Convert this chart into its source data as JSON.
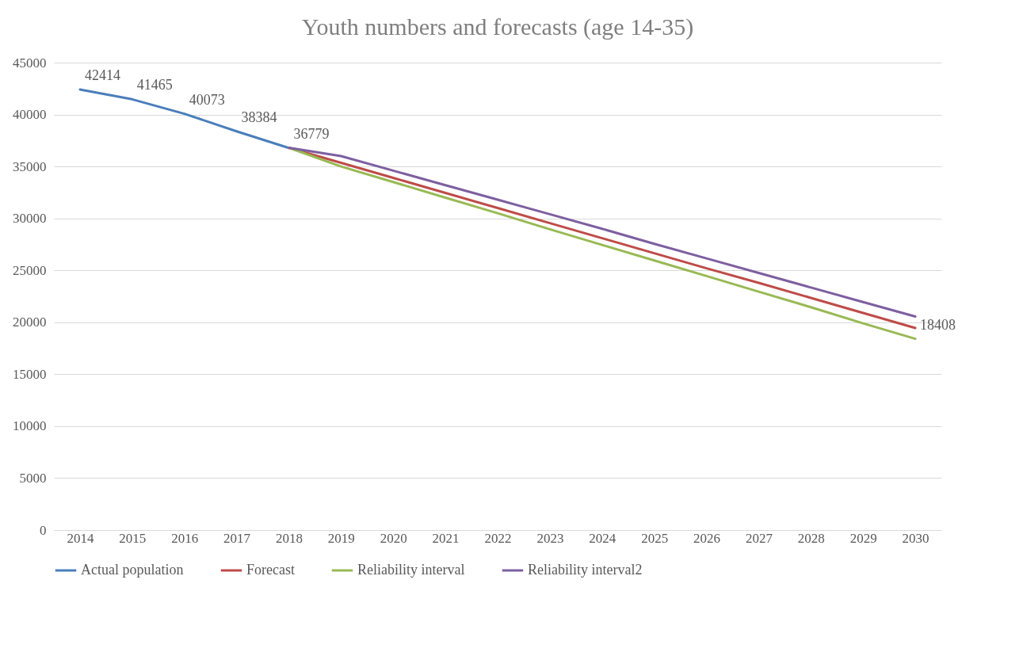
{
  "chart_data": {
    "type": "line",
    "title": "Youth numbers and forecasts (age 14-35)",
    "categories": [
      "2014",
      "2015",
      "2016",
      "2017",
      "2018",
      "2019",
      "2020",
      "2021",
      "2022",
      "2023",
      "2024",
      "2025",
      "2026",
      "2027",
      "2028",
      "2029",
      "2030"
    ],
    "series": [
      {
        "name": "Actual population",
        "color": "#4a7ebb",
        "values": [
          42414,
          41465,
          40073,
          38384,
          36779,
          null,
          null,
          null,
          null,
          null,
          null,
          null,
          null,
          null,
          null,
          null,
          null
        ],
        "value_labels": [
          "42414",
          "41465",
          "40073",
          "38384",
          "36779",
          null,
          null,
          null,
          null,
          null,
          null,
          null,
          null,
          null,
          null,
          null,
          null
        ]
      },
      {
        "name": "Forecast",
        "color": "#be4b48",
        "values": [
          null,
          null,
          null,
          null,
          36800,
          35350,
          33900,
          32450,
          31000,
          29550,
          28100,
          26650,
          25200,
          23800,
          22350,
          20900,
          19450
        ]
      },
      {
        "name": "Reliability interval",
        "color": "#98b954",
        "values": [
          null,
          null,
          null,
          null,
          36800,
          35000,
          33500,
          32000,
          30500,
          28950,
          27450,
          25950,
          24450,
          22950,
          21450,
          19900,
          18408
        ],
        "value_labels": [
          null,
          null,
          null,
          null,
          null,
          null,
          null,
          null,
          null,
          null,
          null,
          null,
          null,
          null,
          null,
          null,
          "18408"
        ]
      },
      {
        "name": "Reliability interval2",
        "color": "#7d5fa0",
        "values": [
          null,
          null,
          null,
          null,
          36800,
          36000,
          34600,
          33200,
          31800,
          30400,
          29000,
          27550,
          26150,
          24750,
          23350,
          21950,
          20550
        ]
      }
    ],
    "ylim": [
      0,
      45000
    ],
    "yticks": [
      0,
      5000,
      10000,
      15000,
      20000,
      25000,
      30000,
      35000,
      40000,
      45000
    ],
    "grid": "y",
    "legend": "bottom",
    "marker": "none",
    "line_style": "solid"
  }
}
